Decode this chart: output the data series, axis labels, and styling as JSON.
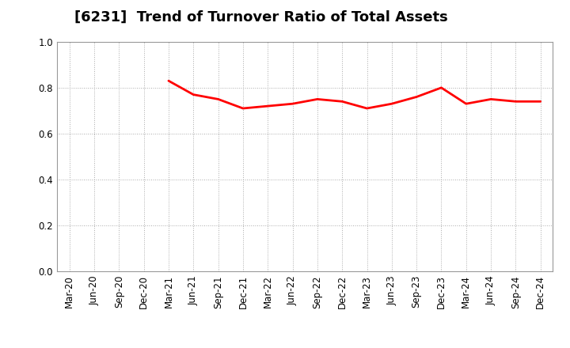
{
  "title": "[6231]  Trend of Turnover Ratio of Total Assets",
  "x_labels": [
    "Mar-20",
    "Jun-20",
    "Sep-20",
    "Dec-20",
    "Mar-21",
    "Jun-21",
    "Sep-21",
    "Dec-21",
    "Mar-22",
    "Jun-22",
    "Sep-22",
    "Dec-22",
    "Mar-23",
    "Jun-23",
    "Sep-23",
    "Dec-23",
    "Mar-24",
    "Jun-24",
    "Sep-24",
    "Dec-24"
  ],
  "values": [
    null,
    null,
    null,
    null,
    0.83,
    0.77,
    0.75,
    0.71,
    0.72,
    0.73,
    0.75,
    0.74,
    0.71,
    0.73,
    0.76,
    0.8,
    0.73,
    0.75,
    0.74,
    0.74
  ],
  "line_color": "#ff0000",
  "line_width": 2.0,
  "ylim": [
    0.0,
    1.0
  ],
  "yticks": [
    0.0,
    0.2,
    0.4,
    0.6,
    0.8,
    1.0
  ],
  "background_color": "#ffffff",
  "grid_color": "#aaaaaa",
  "title_fontsize": 13,
  "tick_fontsize": 8.5
}
